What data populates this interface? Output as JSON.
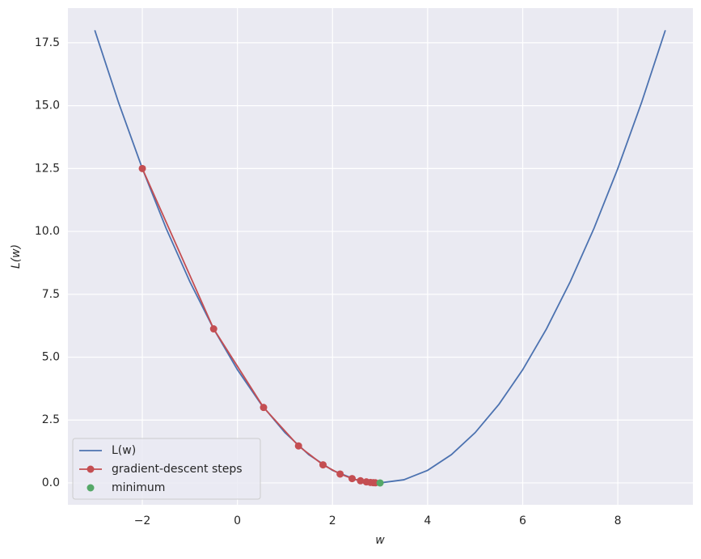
{
  "chart_data": {
    "type": "line",
    "xlabel": "w",
    "ylabel": "L(w)",
    "xlim": [
      -3.565,
      9.58
    ],
    "ylim": [
      -0.87,
      18.88
    ],
    "xticks": [
      {
        "value": -2,
        "label": "−2"
      },
      0,
      2,
      4,
      6,
      8
    ],
    "yticks": [
      {
        "value": 0,
        "label": "0.0"
      },
      2.5,
      {
        "value": 5,
        "label": "5.0"
      },
      7.5,
      {
        "value": 10,
        "label": "10.0"
      },
      12.5,
      {
        "value": 15,
        "label": "15.0"
      },
      17.5
    ],
    "grid": true,
    "legend": "lower left",
    "series": [
      {
        "name": "L(w)",
        "color": "#4c72b0",
        "marker": false,
        "x": [
          -3,
          -2.5,
          -2,
          -1.5,
          -1,
          -0.5,
          0,
          0.5,
          1,
          1.5,
          2,
          2.5,
          3,
          3.5,
          4,
          4.5,
          5,
          5.5,
          6,
          6.5,
          7,
          7.5,
          8,
          8.5,
          9
        ],
        "values": [
          18,
          15.125,
          12.5,
          10.125,
          8,
          6.125,
          4.5,
          3.125,
          2,
          1.125,
          0.5,
          0.125,
          0,
          0.125,
          0.5,
          1.125,
          2,
          3.125,
          4.5,
          6.125,
          8,
          10.125,
          12.5,
          15.125,
          18
        ]
      },
      {
        "name": "gradient-descent steps",
        "color": "#c44e52",
        "marker": true,
        "x": [
          -2,
          -0.5,
          0.55,
          1.285,
          1.8,
          2.16,
          2.412,
          2.588,
          2.712,
          2.798,
          2.859,
          2.901
        ],
        "values": [
          12.5,
          6.125,
          3.001,
          1.471,
          0.72,
          0.353,
          0.173,
          0.085,
          0.041,
          0.02,
          0.01,
          0.005
        ]
      },
      {
        "name": "minimum",
        "color": "#55a868",
        "marker": true,
        "line": false,
        "x": [
          3
        ],
        "values": [
          0
        ]
      }
    ]
  }
}
